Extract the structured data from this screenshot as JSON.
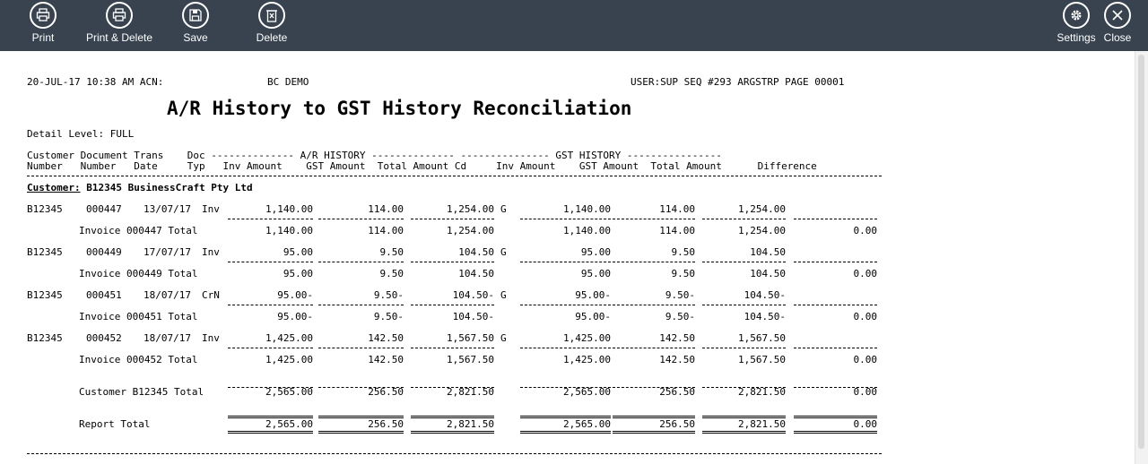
{
  "toolbar": {
    "print": "Print",
    "print_delete": "Print & Delete",
    "save": "Save",
    "delete": "Delete",
    "settings": "Settings",
    "close": "Close"
  },
  "report": {
    "header_left": "20-JUL-17 10:38 AM ACN:",
    "company": "BC DEMO",
    "header_right": "USER:SUP SEQ #293 ARGSTRP PAGE 00001",
    "title": "A/R History to GST History Reconciliation",
    "detail_level": "Detail Level: FULL",
    "col_header_1": "Customer Document Trans    Doc -------------- A/R HISTORY -------------- --------------- GST HISTORY ----------------",
    "col_header_2": "Number   Number   Date     Typ   Inv Amount    GST Amount  Total Amount Cd     Inv Amount    GST Amount  Total Amount      Difference",
    "customer_label": "Customer:",
    "customer_name": "B12345 BusinessCraft Pty Ltd",
    "rows": [
      {
        "cust": "B12345",
        "doc": "000447",
        "date": "13/07/17",
        "typ": "Inv",
        "inv": "1,140.00",
        "gst": "114.00",
        "tot": "1,254.00",
        "cd": "G",
        "ginv": "1,140.00",
        "ggst": "114.00",
        "gtot": "1,254.00",
        "sub_label": "Invoice 000447 Total",
        "sinv": "1,140.00",
        "sgst": "114.00",
        "stot": "1,254.00",
        "sginv": "1,140.00",
        "sggst": "114.00",
        "sgtot": "1,254.00",
        "sdiff": "0.00"
      },
      {
        "cust": "B12345",
        "doc": "000449",
        "date": "17/07/17",
        "typ": "Inv",
        "inv": "95.00",
        "gst": "9.50",
        "tot": "104.50",
        "cd": "G",
        "ginv": "95.00",
        "ggst": "9.50",
        "gtot": "104.50",
        "sub_label": "Invoice 000449 Total",
        "sinv": "95.00",
        "sgst": "9.50",
        "stot": "104.50",
        "sginv": "95.00",
        "sggst": "9.50",
        "sgtot": "104.50",
        "sdiff": "0.00"
      },
      {
        "cust": "B12345",
        "doc": "000451",
        "date": "18/07/17",
        "typ": "CrN",
        "inv": "95.00-",
        "gst": "9.50-",
        "tot": "104.50-",
        "cd": "G",
        "ginv": "95.00-",
        "ggst": "9.50-",
        "gtot": "104.50-",
        "sub_label": "Invoice 000451 Total",
        "sinv": "95.00-",
        "sgst": "9.50-",
        "stot": "104.50-",
        "sginv": "95.00-",
        "sggst": "9.50-",
        "sgtot": "104.50-",
        "sdiff": "0.00"
      },
      {
        "cust": "B12345",
        "doc": "000452",
        "date": "18/07/17",
        "typ": "Inv",
        "inv": "1,425.00",
        "gst": "142.50",
        "tot": "1,567.50",
        "cd": "G",
        "ginv": "1,425.00",
        "ggst": "142.50",
        "gtot": "1,567.50",
        "sub_label": "Invoice 000452 Total",
        "sinv": "1,425.00",
        "sgst": "142.50",
        "stot": "1,567.50",
        "sginv": "1,425.00",
        "sggst": "142.50",
        "sgtot": "1,567.50",
        "sdiff": "0.00"
      }
    ],
    "customer_total": {
      "label": "Customer B12345 Total",
      "inv": "2,565.00",
      "gst": "256.50",
      "tot": "2,821.50",
      "ginv": "2,565.00",
      "ggst": "256.50",
      "gtot": "2,821.50",
      "diff": "0.00"
    },
    "report_total": {
      "label": "Report Total",
      "inv": "2,565.00",
      "gst": "256.50",
      "tot": "2,821.50",
      "ginv": "2,565.00",
      "ggst": "256.50",
      "gtot": "2,821.50",
      "diff": "0.00"
    }
  }
}
